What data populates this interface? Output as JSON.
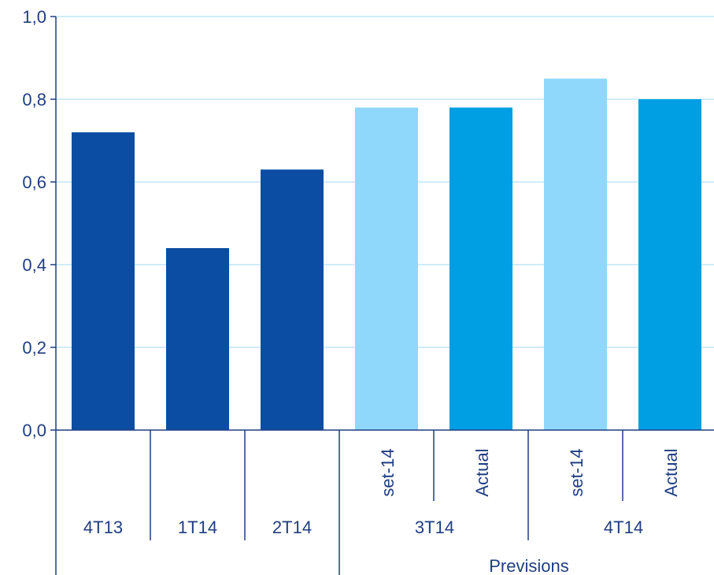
{
  "chart_data": {
    "type": "bar",
    "title": "",
    "xlabel": "",
    "ylabel": "",
    "ylim": [
      0,
      1.0
    ],
    "yticks": [
      "0,0",
      "0,2",
      "0,4",
      "0,6",
      "0,8",
      "1,0"
    ],
    "grid": true,
    "bars": [
      {
        "period": "4T13",
        "sub": "",
        "value": 0.72,
        "color": "#0a4da2"
      },
      {
        "period": "1T14",
        "sub": "",
        "value": 0.44,
        "color": "#0a4da2"
      },
      {
        "period": "2T14",
        "sub": "",
        "value": 0.63,
        "color": "#0a4da2"
      },
      {
        "period": "3T14",
        "sub": "set-14",
        "value": 0.78,
        "color": "#8fd8fb"
      },
      {
        "period": "3T14",
        "sub": "Actual",
        "value": 0.78,
        "color": "#009ee3"
      },
      {
        "period": "4T14",
        "sub": "set-14",
        "value": 0.85,
        "color": "#8fd8fb"
      },
      {
        "period": "4T14",
        "sub": "Actual",
        "value": 0.8,
        "color": "#009ee3"
      }
    ],
    "period_labels": [
      "4T13",
      "1T14",
      "2T14",
      "3T14",
      "4T14"
    ],
    "group_label": "Previsions",
    "colors": {
      "grid": "#9fd9f6",
      "axis": "#1f3e82",
      "text": "#1f3e82"
    }
  }
}
